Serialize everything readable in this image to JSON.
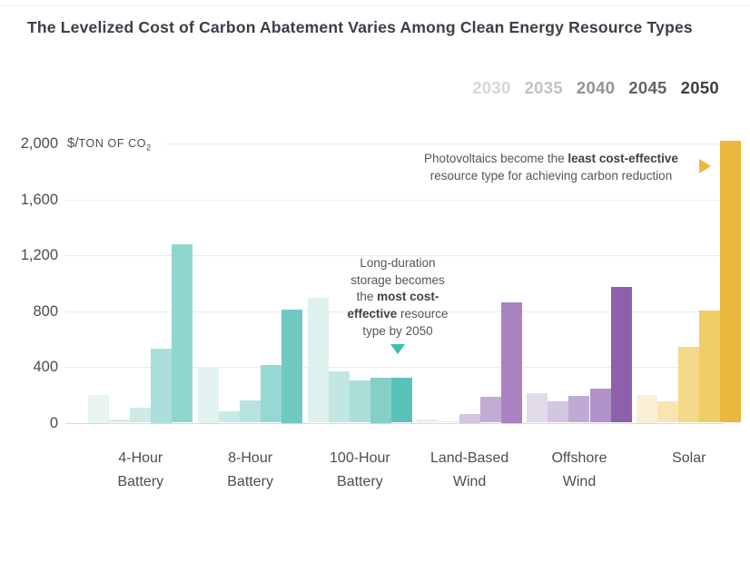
{
  "title": "The Levelized Cost of Carbon Abatement Varies Among Clean Energy Resource Types",
  "legend": {
    "years": [
      {
        "label": "2030",
        "color": "#d6d6d6"
      },
      {
        "label": "2035",
        "color": "#c2c2c2"
      },
      {
        "label": "2040",
        "color": "#949494"
      },
      {
        "label": "2045",
        "color": "#646464"
      },
      {
        "label": "2050",
        "color": "#3d3e40"
      }
    ]
  },
  "y_axis": {
    "top_tick": "2,000",
    "unit_dollar": "$/",
    "unit_text": "TON OF CO",
    "unit_sub": "2"
  },
  "annotations": {
    "storage": {
      "l1": "Long-duration",
      "l2": "storage becomes",
      "l3a": "the ",
      "l3b": "most cost-",
      "l4a": "effective",
      "l4b": " resource",
      "l5": "type by 2050",
      "pointer_color": "#3cbcb1"
    },
    "solar": {
      "l1a": "Photovoltaics become the ",
      "l1b": "least cost-effective",
      "l2": "resource type for achieving carbon reduction",
      "pointer_color": "#edb73e"
    }
  },
  "chart_data": {
    "type": "bar",
    "title": "The Levelized Cost of Carbon Abatement Varies Among Clean Energy Resource Types",
    "xlabel": "",
    "ylabel": "$/TON OF CO2",
    "ylim": [
      0,
      2000
    ],
    "grid": true,
    "legend_position": "top-right",
    "categories": [
      "4-Hour Battery",
      "8-Hour Battery",
      "100-Hour Battery",
      "Land-Based Wind",
      "Offshore Wind",
      "Solar"
    ],
    "category_lines": [
      [
        "4-Hour",
        "Battery"
      ],
      [
        "8-Hour",
        "Battery"
      ],
      [
        "100-Hour",
        "Battery"
      ],
      [
        "Land-Based",
        "Wind"
      ],
      [
        "Offshore",
        "Wind"
      ],
      [
        "Solar"
      ]
    ],
    "series": [
      {
        "name": "2030",
        "values": [
          200,
          400,
          895,
          25,
          210,
          200
        ]
      },
      {
        "name": "2035",
        "values": [
          25,
          80,
          370,
          8,
          150,
          150
        ]
      },
      {
        "name": "2040",
        "values": [
          110,
          160,
          300,
          65,
          190,
          545
        ]
      },
      {
        "name": "2045",
        "values": [
          530,
          415,
          325,
          185,
          245,
          805
        ]
      },
      {
        "name": "2050",
        "values": [
          1280,
          810,
          320,
          865,
          975,
          2020
        ]
      }
    ],
    "palette": [
      [
        "#e7f4f2",
        "#d8efec",
        "#cdeae6",
        "#aadfda",
        "#8fd6cf"
      ],
      [
        "#e3f3f1",
        "#c9e9e6",
        "#b6e3df",
        "#97d8d2",
        "#6fc9c1"
      ],
      [
        "#ddf1ee",
        "#c2e7e3",
        "#aadfda",
        "#84d0c9",
        "#59c2b8"
      ],
      [
        "#efe9f3",
        "#e8e0ee",
        "#d5c5e0",
        "#c3abd4",
        "#a983c2"
      ],
      [
        "#e2dae9",
        "#d3c6e0",
        "#c0a9d3",
        "#b192c8",
        "#8c60ab"
      ],
      [
        "#faf0d8",
        "#f9e5b2",
        "#f3d889",
        "#f0cd66",
        "#eab83e"
      ]
    ],
    "y_ticks": [
      {
        "value": 0,
        "label": "0"
      },
      {
        "value": 400,
        "label": "400"
      },
      {
        "value": 800,
        "label": "800"
      },
      {
        "value": 1200,
        "label": "1,200"
      },
      {
        "value": 1600,
        "label": "1,600"
      },
      {
        "value": 2000,
        "label": ""
      }
    ]
  }
}
